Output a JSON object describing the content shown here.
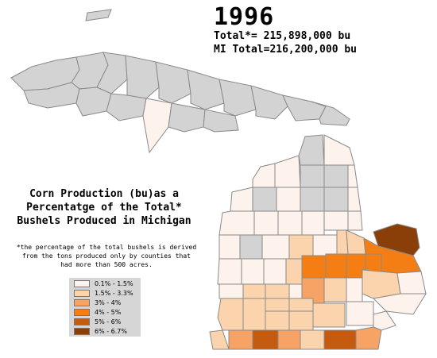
{
  "header": {
    "year": "1996",
    "total": "Total*= 215,898,000 bu",
    "mi_total": "MI Total=216,200,000 bu"
  },
  "title_lines": [
    "Corn Production (bu)as a",
    "Percentatge of the Total*",
    "Bushels Produced in Michigan"
  ],
  "footnote_lines": [
    "*the percentage of the total bushels is derived",
    "from the tons produced only by counties that",
    "had more than 500 acres."
  ],
  "legend": [
    {
      "label": "0.1% - 1.5%",
      "color": "#fdf3ec"
    },
    {
      "label": "1.5% - 3.3%",
      "color": "#fbd4ae"
    },
    {
      "label": "3% - 4%",
      "color": "#f7a365"
    },
    {
      "label": "4% - 5%",
      "color": "#f57e14"
    },
    {
      "label": "5% - 6%",
      "color": "#c45b0e"
    },
    {
      "label": "6% - 6.7%",
      "color": "#8b3f08"
    }
  ],
  "no_data_color": "#d3d3d3"
}
